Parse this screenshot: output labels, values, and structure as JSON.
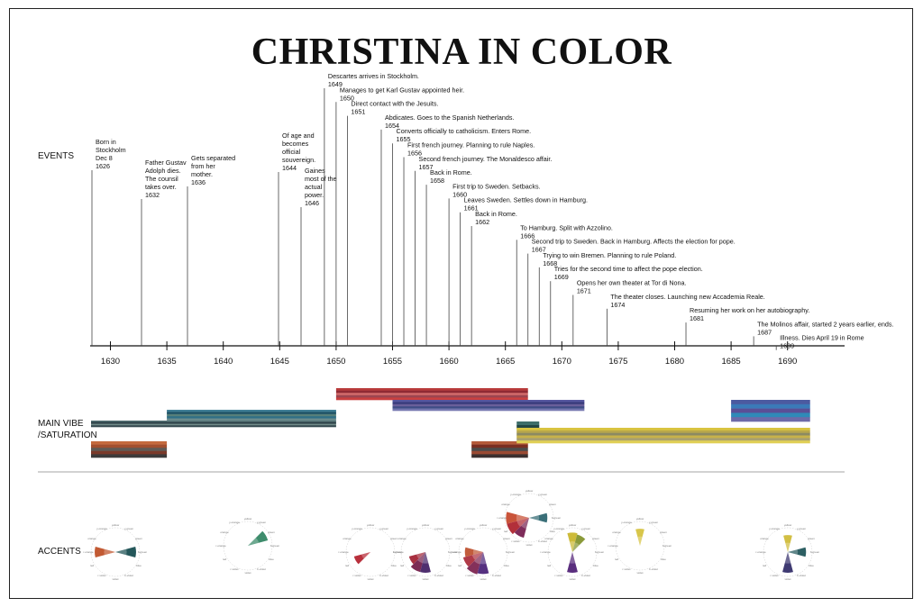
{
  "title": "CHRISTINA IN COLOR",
  "sections": {
    "events": "EVENTS",
    "vibe_line1": "MAIN VIBE",
    "vibe_line2": "/SATURATION",
    "accents": "ACCENTS"
  },
  "chart_data": {
    "type": "timeline",
    "xlim": [
      1627,
      1692
    ],
    "ticks": [
      1630,
      1635,
      1640,
      1645,
      1650,
      1655,
      1660,
      1665,
      1670,
      1675,
      1680,
      1685,
      1690
    ],
    "events": [
      {
        "year": 1626,
        "lines": [
          "Born in",
          "Stockholm",
          "Dec 8",
          "1626"
        ]
      },
      {
        "year": 1632,
        "lines": [
          "Father Gustav",
          "Adolph dies.",
          "The counsil",
          "takes over.",
          "1632"
        ]
      },
      {
        "year": 1636,
        "lines": [
          "Gets separated",
          "from her",
          "mother.",
          "1636"
        ]
      },
      {
        "year": 1644,
        "lines": [
          "Of age and",
          "becomes",
          "official",
          "souvereign.",
          "1644"
        ]
      },
      {
        "year": 1646,
        "lines": [
          "Gaines",
          "most of the",
          "actual",
          "power.",
          "1646"
        ]
      },
      {
        "year": 1649,
        "lines": [
          "Descartes arrives in Stockholm.",
          "1649"
        ]
      },
      {
        "year": 1650,
        "lines": [
          "Manages to get Karl Gustav appointed heir.",
          "1650"
        ]
      },
      {
        "year": 1651,
        "lines": [
          "Direct contact with the Jesuits.",
          "1651"
        ]
      },
      {
        "year": 1654,
        "lines": [
          "Abdicates. Goes to the Spanish Netherlands.",
          "1654"
        ]
      },
      {
        "year": 1655,
        "lines": [
          "Converts officially to catholicism. Enters Rome.",
          "1655"
        ]
      },
      {
        "year": 1656,
        "lines": [
          "First french journey. Planning to rule Naples.",
          "1656"
        ]
      },
      {
        "year": 1657,
        "lines": [
          "Second french journey. The Monaldesco affair.",
          "1657"
        ]
      },
      {
        "year": 1658,
        "lines": [
          "Back in Rome.",
          "1658"
        ]
      },
      {
        "year": 1660,
        "lines": [
          "First trip to Sweden. Setbacks.",
          "1660"
        ]
      },
      {
        "year": 1661,
        "lines": [
          "Leaves Sweden. Settles down in Hamburg.",
          "1661"
        ]
      },
      {
        "year": 1662,
        "lines": [
          "Back in Rome.",
          "1662"
        ]
      },
      {
        "year": 1666,
        "lines": [
          "To Hamburg. Split with Azzolino.",
          "1666"
        ]
      },
      {
        "year": 1667,
        "lines": [
          "Second trip to Sweden. Back in Hamburg. Affects the election for pope.",
          "1667"
        ]
      },
      {
        "year": 1668,
        "lines": [
          "Trying to win Bremen. Planning to rule Poland.",
          "1668"
        ]
      },
      {
        "year": 1669,
        "lines": [
          "Tries for the second time to affect the pope election.",
          "1669"
        ]
      },
      {
        "year": 1671,
        "lines": [
          "Opens her own theater at Tor di Nona.",
          "1671"
        ]
      },
      {
        "year": 1674,
        "lines": [
          "The theater closes. Launching new Accademia Reale.",
          "1674"
        ]
      },
      {
        "year": 1681,
        "lines": [
          "Resuming her work on her autobiography.",
          "1681"
        ]
      },
      {
        "year": 1687,
        "lines": [
          "The Molinos affair, started 2 years earlier, ends.",
          "1687"
        ]
      },
      {
        "year": 1689,
        "lines": [
          "Illness. Dies April 19 in Rome",
          "1689"
        ]
      }
    ],
    "vibe_bars": [
      {
        "start": 1626,
        "end": 1650,
        "colors": [
          "#4e6b6e",
          "#2a3d45",
          "#6f8a87",
          "#33484e"
        ]
      },
      {
        "start": 1635,
        "end": 1650,
        "colors": [
          "#3f7e95",
          "#1f5266",
          "#567f7a",
          "#2f6f86",
          "#6a8a8c"
        ]
      },
      {
        "start": 1626,
        "end": 1635,
        "colors": [
          "#c46a3e",
          "#a24f2f",
          "#5f5a55",
          "#7a3a2a",
          "#3c3b3b"
        ]
      },
      {
        "start": 1650,
        "end": 1667,
        "colors": [
          "#b83a3a",
          "#8f2a34",
          "#d06a6a",
          "#9c4550",
          "#c94040"
        ]
      },
      {
        "start": 1655,
        "end": 1672,
        "colors": [
          "#55569e",
          "#3a3c7c",
          "#6a5f9a",
          "#3f4d86",
          "#7678b0"
        ]
      },
      {
        "start": 1662,
        "end": 1667,
        "colors": [
          "#b45a3a",
          "#7a2e22",
          "#4b4b4b",
          "#9a4a33",
          "#3b3030"
        ]
      },
      {
        "start": 1666,
        "end": 1668,
        "colors": [
          "#3e6e6a",
          "#234645"
        ]
      },
      {
        "start": 1666,
        "end": 1692,
        "colors": [
          "#d9c440",
          "#b9a84a",
          "#8c8a62",
          "#c7b24a",
          "#a9a070",
          "#e0cf55"
        ]
      },
      {
        "start": 1685,
        "end": 1692,
        "colors": [
          "#4c5aa0",
          "#3b7ab8",
          "#5a4f96",
          "#2f8ab8",
          "#6d6aa8"
        ]
      }
    ],
    "accents": [
      {
        "year": 1626,
        "wedges": [
          {
            "hue": "red-orange",
            "depth": 0.85,
            "color": "#c25a33"
          },
          {
            "hue": "blue-green",
            "depth": 0.85,
            "color": "#24575a"
          }
        ]
      },
      {
        "year": 1641,
        "wedges": [
          {
            "hue": "green",
            "depth": 0.85,
            "color": "#3e8c6c"
          }
        ]
      },
      {
        "year": 1650,
        "wedges": [
          {
            "hue": "red",
            "depth": 0.7,
            "color": "#b8303c"
          }
        ]
      },
      {
        "year": 1656,
        "wedges": [
          {
            "hue": "red",
            "depth": 0.7,
            "color": "#a83040"
          },
          {
            "hue": "red-violet",
            "depth": 0.85,
            "color": "#7b2b54"
          },
          {
            "hue": "violet",
            "depth": 0.85,
            "color": "#4f2f6f"
          }
        ]
      },
      {
        "year": 1662,
        "wedges": [
          {
            "hue": "red",
            "depth": 0.85,
            "color": "#b03a48"
          },
          {
            "hue": "red-violet",
            "depth": 0.95,
            "color": "#84305a"
          },
          {
            "hue": "violet",
            "depth": 0.9,
            "color": "#553080"
          },
          {
            "hue": "red-orange",
            "depth": 0.75,
            "color": "#c25c3c"
          }
        ]
      },
      {
        "year": 1666,
        "wedges": [
          {
            "hue": "red-orange",
            "depth": 0.95,
            "color": "#c9543a"
          },
          {
            "hue": "red",
            "depth": 0.95,
            "color": "#b2303a"
          },
          {
            "hue": "red-violet",
            "depth": 0.85,
            "color": "#7e2c5a"
          },
          {
            "hue": "blue-green",
            "depth": 0.75,
            "color": "#3a6f78"
          }
        ]
      },
      {
        "year": 1669,
        "wedges": [
          {
            "hue": "yellow",
            "depth": 0.8,
            "color": "#cdbb3a"
          },
          {
            "hue": "yellow-green",
            "depth": 0.75,
            "color": "#8a9a3a"
          },
          {
            "hue": "violet",
            "depth": 0.85,
            "color": "#5a2e7e"
          }
        ]
      },
      {
        "year": 1675,
        "wedges": [
          {
            "hue": "yellow",
            "depth": 0.7,
            "color": "#d8c64a"
          }
        ]
      },
      {
        "year": 1690,
        "wedges": [
          {
            "hue": "yellow",
            "depth": 0.7,
            "color": "#d2bf44"
          },
          {
            "hue": "blue-green",
            "depth": 0.75,
            "color": "#2d5f63"
          },
          {
            "hue": "violet",
            "depth": 0.85,
            "color": "#3f3a72"
          }
        ]
      }
    ]
  }
}
